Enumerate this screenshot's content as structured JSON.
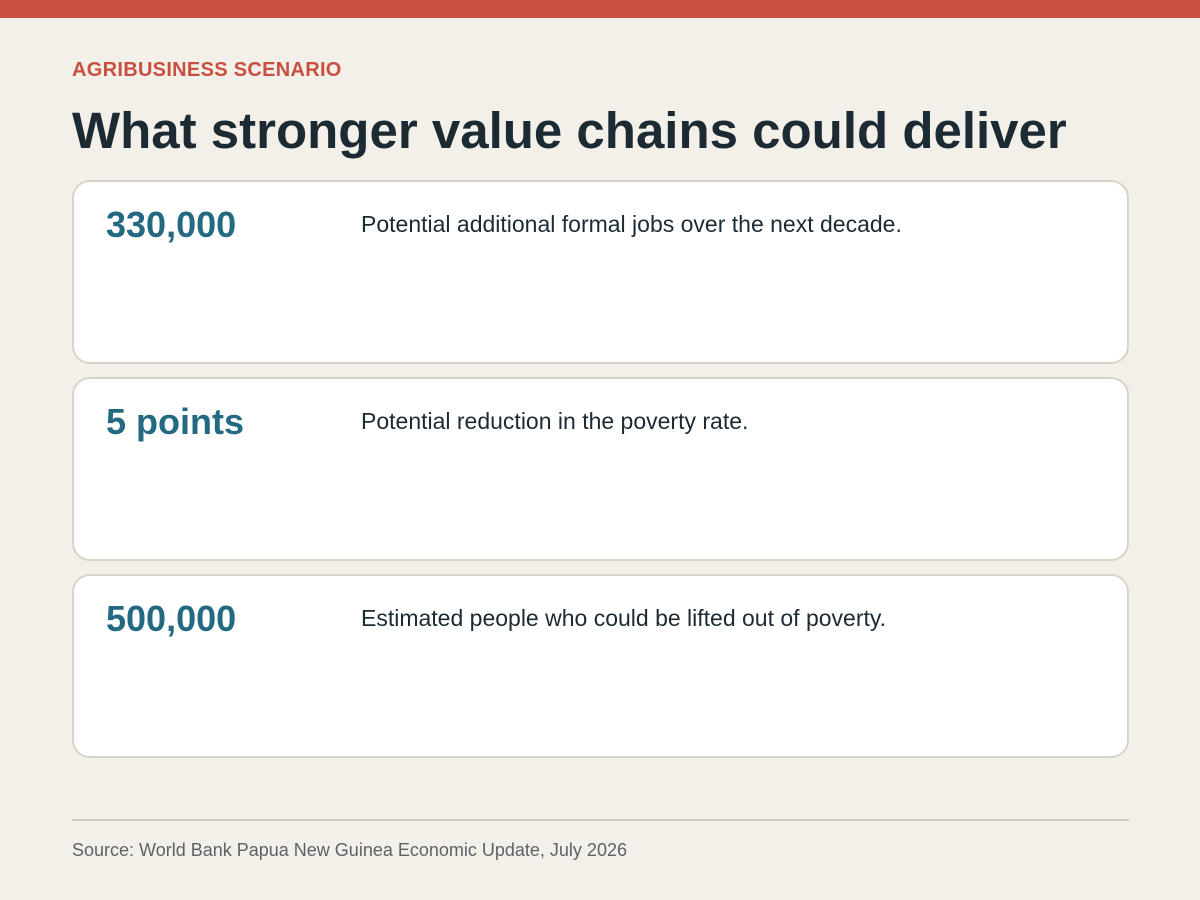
{
  "header": {
    "kicker": "AGRIBUSINESS SCENARIO",
    "title": "What stronger value chains could deliver"
  },
  "cards": [
    {
      "value": "330,000",
      "description": "Potential additional formal jobs over the next decade."
    },
    {
      "value": "5 points",
      "description": "Potential reduction in the poverty rate."
    },
    {
      "value": "500,000",
      "description": "Estimated people who could be lifted out of poverty."
    }
  ],
  "footer": {
    "source": "Source: World Bank Papua New Guinea Economic Update, July 2026"
  },
  "colors": {
    "accent": "#c94f3f",
    "value_blue": "#236981",
    "background": "#f3f0e9",
    "title_text": "#1c2a33"
  }
}
